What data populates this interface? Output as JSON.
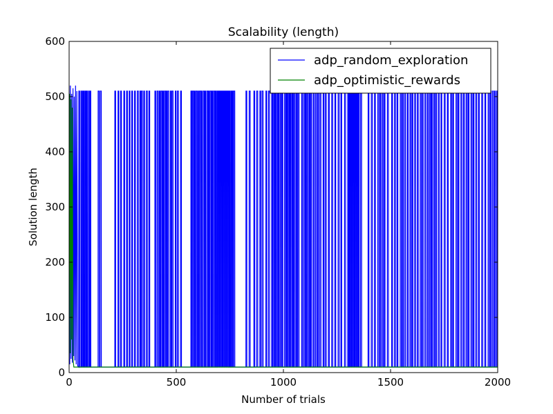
{
  "chart_data": {
    "type": "line",
    "title": "Scalability (length)",
    "xlabel": "Number of trials",
    "ylabel": "Solution length",
    "xlim": [
      0,
      2000
    ],
    "ylim": [
      0,
      600
    ],
    "xticks": [
      0,
      500,
      1000,
      1500,
      2000
    ],
    "yticks": [
      0,
      100,
      200,
      300,
      400,
      500,
      600
    ],
    "grid": false,
    "legend_position": "top-right",
    "series": [
      {
        "name": "adp_random_exploration",
        "color": "#0000ff",
        "baseline": 10,
        "spike_value": 510,
        "start_values": [
          [
            0,
            520
          ],
          [
            3,
            15
          ],
          [
            6,
            520
          ],
          [
            9,
            25
          ],
          [
            12,
            505
          ],
          [
            15,
            18
          ],
          [
            18,
            515
          ],
          [
            21,
            30
          ],
          [
            24,
            500
          ],
          [
            27,
            22
          ],
          [
            30,
            520
          ],
          [
            33,
            15
          ],
          [
            36,
            510
          ],
          [
            40,
            12
          ]
        ],
        "spikes": [
          [
            45,
            4
          ],
          [
            55,
            3
          ],
          [
            62,
            4
          ],
          [
            68,
            3
          ],
          [
            75,
            4
          ],
          [
            82,
            3
          ],
          [
            90,
            4
          ],
          [
            98,
            3
          ],
          [
            135,
            5
          ],
          [
            145,
            5
          ],
          [
            213,
            4
          ],
          [
            228,
            4
          ],
          [
            240,
            4
          ],
          [
            255,
            4
          ],
          [
            268,
            4
          ],
          [
            280,
            4
          ],
          [
            292,
            4
          ],
          [
            305,
            4
          ],
          [
            318,
            5
          ],
          [
            330,
            4
          ],
          [
            337,
            5
          ],
          [
            348,
            4
          ],
          [
            360,
            5
          ],
          [
            372,
            4
          ],
          [
            400,
            4
          ],
          [
            410,
            5
          ],
          [
            420,
            4
          ],
          [
            428,
            5
          ],
          [
            436,
            4
          ],
          [
            444,
            5
          ],
          [
            452,
            4
          ],
          [
            460,
            5
          ],
          [
            472,
            4
          ],
          [
            480,
            5
          ],
          [
            495,
            4
          ],
          [
            505,
            5
          ],
          [
            520,
            4
          ],
          [
            568,
            4
          ],
          [
            575,
            5
          ],
          [
            583,
            4
          ],
          [
            591,
            5
          ],
          [
            600,
            4
          ],
          [
            608,
            5
          ],
          [
            616,
            4
          ],
          [
            625,
            5
          ],
          [
            633,
            4
          ],
          [
            642,
            5
          ],
          [
            650,
            4
          ],
          [
            658,
            5
          ],
          [
            666,
            4
          ],
          [
            674,
            5
          ],
          [
            682,
            4
          ],
          [
            690,
            3
          ],
          [
            694,
            4
          ],
          [
            698,
            3
          ],
          [
            702,
            4
          ],
          [
            706,
            3
          ],
          [
            710,
            4
          ],
          [
            714,
            3
          ],
          [
            718,
            4
          ],
          [
            722,
            3
          ],
          [
            726,
            4
          ],
          [
            730,
            3
          ],
          [
            734,
            4
          ],
          [
            738,
            3
          ],
          [
            742,
            4
          ],
          [
            748,
            3
          ],
          [
            755,
            4
          ],
          [
            762,
            4
          ],
          [
            768,
            5
          ],
          [
            825,
            4
          ],
          [
            840,
            5
          ],
          [
            862,
            4
          ],
          [
            875,
            5
          ],
          [
            890,
            4
          ],
          [
            900,
            5
          ],
          [
            918,
            4
          ],
          [
            930,
            5
          ],
          [
            945,
            4
          ],
          [
            952,
            5
          ],
          [
            960,
            4
          ],
          [
            968,
            5
          ],
          [
            976,
            4
          ],
          [
            985,
            5
          ],
          [
            993,
            4
          ],
          [
            1005,
            5
          ],
          [
            1013,
            4
          ],
          [
            1020,
            5
          ],
          [
            1028,
            4
          ],
          [
            1035,
            5
          ],
          [
            1042,
            4
          ],
          [
            1050,
            5
          ],
          [
            1060,
            4
          ],
          [
            1068,
            5
          ],
          [
            1085,
            4
          ],
          [
            1095,
            5
          ],
          [
            1102,
            4
          ],
          [
            1110,
            5
          ],
          [
            1120,
            4
          ],
          [
            1128,
            5
          ],
          [
            1140,
            4
          ],
          [
            1150,
            5
          ],
          [
            1160,
            4
          ],
          [
            1170,
            5
          ],
          [
            1185,
            4
          ],
          [
            1195,
            5
          ],
          [
            1210,
            4
          ],
          [
            1225,
            5
          ],
          [
            1240,
            4
          ],
          [
            1255,
            5
          ],
          [
            1268,
            4
          ],
          [
            1285,
            5
          ],
          [
            1300,
            4
          ],
          [
            1305,
            3
          ],
          [
            1310,
            4
          ],
          [
            1314,
            3
          ],
          [
            1318,
            4
          ],
          [
            1322,
            3
          ],
          [
            1326,
            4
          ],
          [
            1330,
            3
          ],
          [
            1334,
            4
          ],
          [
            1338,
            3
          ],
          [
            1342,
            4
          ],
          [
            1346,
            3
          ],
          [
            1350,
            4
          ],
          [
            1360,
            5
          ],
          [
            1395,
            4
          ],
          [
            1410,
            5
          ],
          [
            1425,
            4
          ],
          [
            1440,
            5
          ],
          [
            1450,
            4
          ],
          [
            1460,
            5
          ],
          [
            1470,
            4
          ],
          [
            1485,
            5
          ],
          [
            1505,
            4
          ],
          [
            1518,
            5
          ],
          [
            1530,
            4
          ],
          [
            1545,
            5
          ],
          [
            1555,
            4
          ],
          [
            1565,
            5
          ],
          [
            1578,
            4
          ],
          [
            1590,
            5
          ],
          [
            1600,
            4
          ],
          [
            1612,
            5
          ],
          [
            1625,
            4
          ],
          [
            1638,
            5
          ],
          [
            1648,
            4
          ],
          [
            1660,
            5
          ],
          [
            1672,
            4
          ],
          [
            1682,
            5
          ],
          [
            1690,
            4
          ],
          [
            1700,
            5
          ],
          [
            1710,
            4
          ],
          [
            1722,
            5
          ],
          [
            1735,
            4
          ],
          [
            1750,
            5
          ],
          [
            1765,
            4
          ],
          [
            1780,
            5
          ],
          [
            1790,
            4
          ],
          [
            1805,
            5
          ],
          [
            1815,
            4
          ],
          [
            1828,
            5
          ],
          [
            1840,
            4
          ],
          [
            1852,
            5
          ],
          [
            1862,
            4
          ],
          [
            1875,
            5
          ],
          [
            1885,
            4
          ],
          [
            1897,
            5
          ],
          [
            1910,
            4
          ],
          [
            1925,
            5
          ],
          [
            1940,
            4
          ],
          [
            1955,
            5
          ],
          [
            1965,
            4
          ],
          [
            1975,
            5
          ],
          [
            1985,
            4
          ],
          [
            1995,
            4
          ]
        ]
      },
      {
        "name": "adp_optimistic_rewards",
        "color": "#008000",
        "baseline": 10,
        "start_values": [
          [
            0,
            28
          ],
          [
            3,
            505
          ],
          [
            6,
            35
          ],
          [
            9,
            495
          ],
          [
            12,
            60
          ],
          [
            15,
            480
          ],
          [
            18,
            25
          ],
          [
            22,
            10
          ],
          [
            2000,
            10
          ]
        ]
      }
    ]
  }
}
